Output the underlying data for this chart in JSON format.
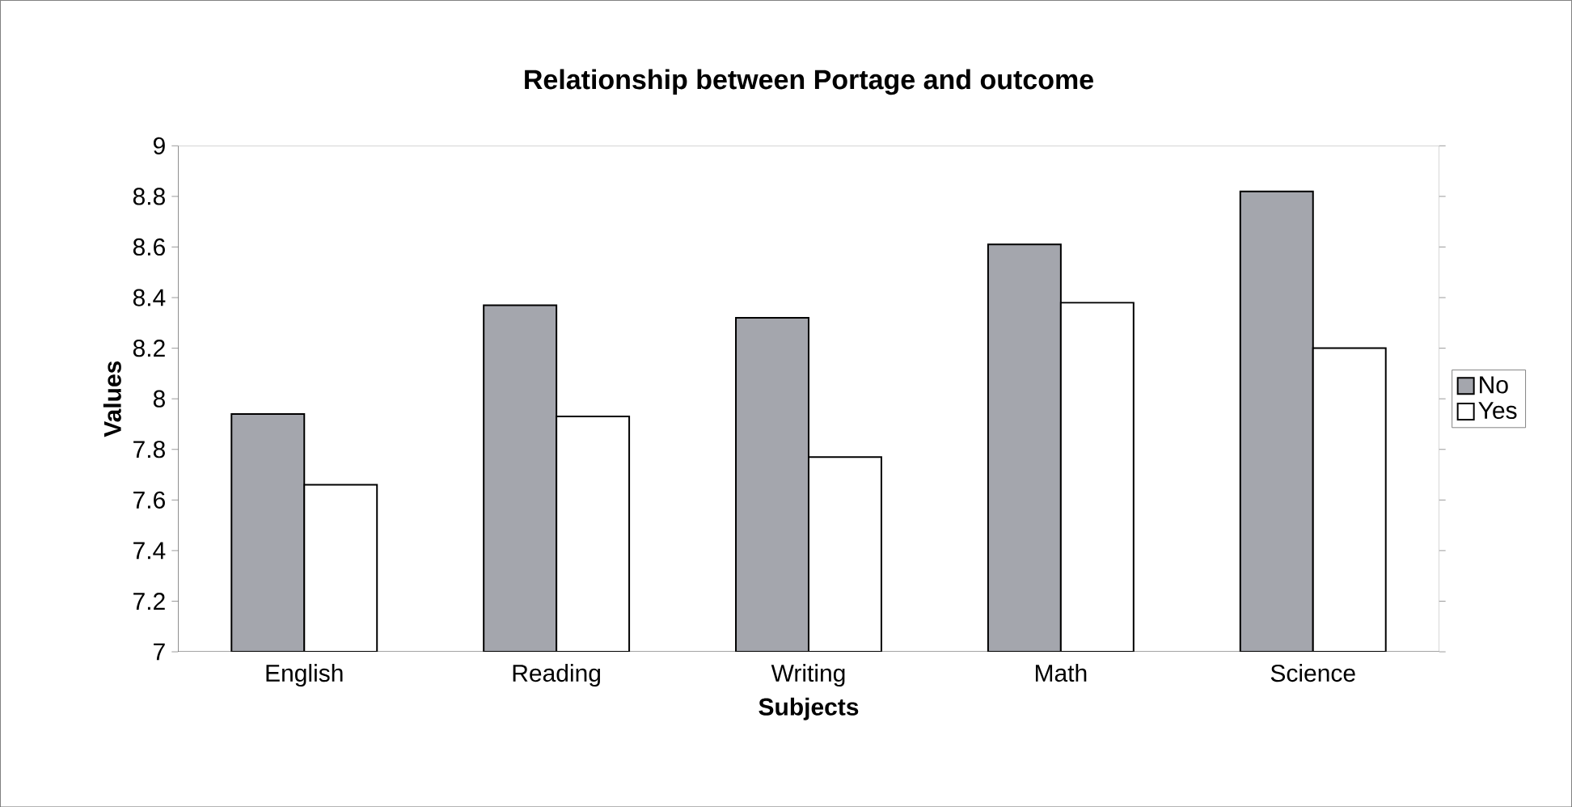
{
  "chart_data": {
    "type": "bar",
    "title": "Relationship between Portage and outcome",
    "xlabel": "Subjects",
    "ylabel": "Values",
    "categories": [
      "English",
      "Reading",
      "Writing",
      "Math",
      "Science"
    ],
    "series": [
      {
        "name": "No",
        "color": "#a4a6ad",
        "values": [
          7.94,
          8.37,
          8.32,
          8.61,
          8.82
        ]
      },
      {
        "name": "Yes",
        "color": "#ffffff",
        "values": [
          7.66,
          7.93,
          7.77,
          8.38,
          8.2
        ]
      }
    ],
    "ylim": [
      7,
      9
    ],
    "yticks": [
      7,
      7.2,
      7.4,
      7.6,
      7.8,
      8,
      8.2,
      8.4,
      8.6,
      8.8,
      9
    ],
    "grid": false,
    "legend": "right"
  }
}
